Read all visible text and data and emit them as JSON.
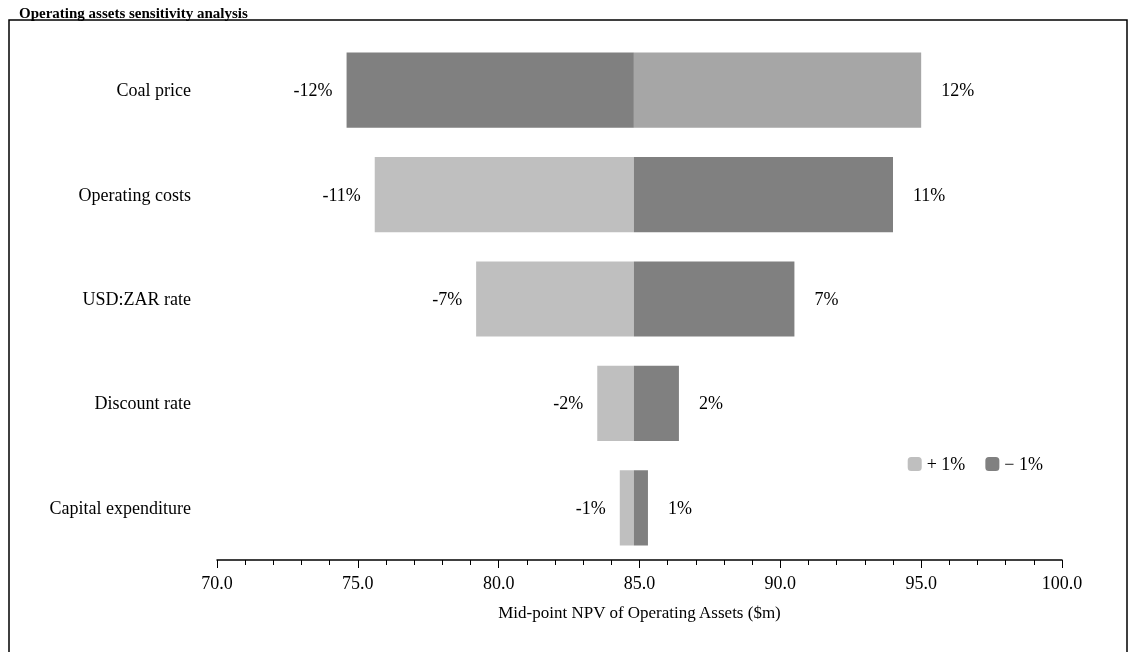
{
  "chart_data": {
    "type": "bar",
    "orientation": "horizontal",
    "title": "Operating assets sensitivity analysis",
    "xlabel": "Mid-point NPV of Operating Assets ($m)",
    "categories": [
      "Coal price",
      "Operating costs",
      "USD:ZAR rate",
      "Discount rate",
      "Capital expenditure"
    ],
    "series": [
      {
        "name": "+ 1%",
        "color": "#bfbfbf",
        "colors": [
          "#a6a6a6",
          "#bfbfbf",
          "#bfbfbf",
          "#bfbfbf",
          "#bfbfbf"
        ],
        "base": [
          84.8,
          75.6,
          79.2,
          83.5,
          84.3
        ],
        "values": [
          10.2,
          9.2,
          5.6,
          1.3,
          0.5
        ]
      },
      {
        "name": "− 1%",
        "color": "#808080",
        "colors": [
          "#808080",
          "#808080",
          "#808080",
          "#808080",
          "#808080"
        ],
        "base": [
          74.6,
          84.8,
          84.8,
          84.8,
          84.8
        ],
        "values": [
          10.2,
          9.2,
          5.7,
          1.6,
          0.5
        ]
      }
    ],
    "annotations": [
      {
        "text": "-12%",
        "x": 74.6,
        "y": "Coal price"
      },
      {
        "text": "12%",
        "x": 95.0,
        "y": "Coal price"
      },
      {
        "text": "-11%",
        "x": 75.6,
        "y": "Operating costs"
      },
      {
        "text": "11%",
        "x": 94.0,
        "y": "Operating costs"
      },
      {
        "text": "-7%",
        "x": 79.2,
        "y": "USD:ZAR rate"
      },
      {
        "text": "7%",
        "x": 90.5,
        "y": "USD:ZAR rate"
      },
      {
        "text": "-2%",
        "x": 83.5,
        "y": "Discount rate"
      },
      {
        "text": "2%",
        "x": 86.4,
        "y": "Discount rate"
      },
      {
        "text": "-1%",
        "x": 84.3,
        "y": "Capital expenditure"
      },
      {
        "text": "1%",
        "x": 85.3,
        "y": "Capital expenditure"
      }
    ],
    "xlim": [
      70,
      100
    ],
    "xticks": [
      {
        "value": 70,
        "label": "70.0"
      },
      {
        "value": 75,
        "label": "75.0"
      },
      {
        "value": 80,
        "label": "80.0"
      },
      {
        "value": 85,
        "label": "85.0"
      },
      {
        "value": 90,
        "label": "90.0"
      },
      {
        "value": 95,
        "label": "95.0"
      },
      {
        "value": 100,
        "label": "100.0"
      }
    ],
    "grid": false,
    "legend": "bottom right"
  }
}
